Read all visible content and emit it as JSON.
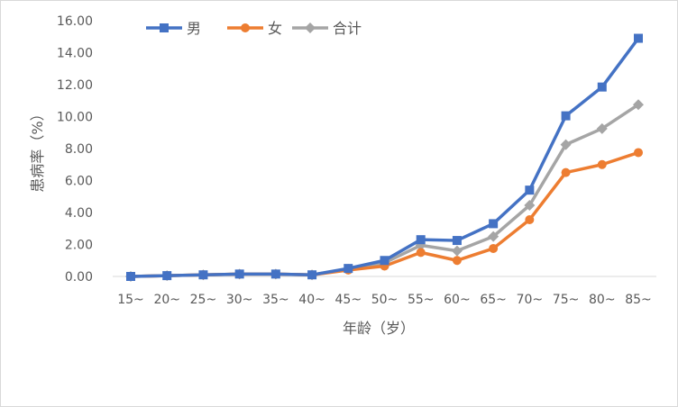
{
  "chart_data": {
    "type": "line",
    "title": "",
    "xlabel": "年龄（岁）",
    "ylabel": "患病率（%）",
    "categories": [
      "15~",
      "20~",
      "25~",
      "30~",
      "35~",
      "40~",
      "45~",
      "50~",
      "55~",
      "60~",
      "65~",
      "70~",
      "75~",
      "80~",
      "85~"
    ],
    "ylim": [
      0,
      16
    ],
    "yticks": [
      "0.00",
      "2.00",
      "4.00",
      "6.00",
      "8.00",
      "10.00",
      "12.00",
      "14.00",
      "16.00"
    ],
    "grid": false,
    "legend": "top-left",
    "series": [
      {
        "name": "男",
        "color": "#4472c4",
        "marker": "square",
        "values": [
          0.0,
          0.05,
          0.1,
          0.15,
          0.15,
          0.1,
          0.5,
          1.0,
          2.3,
          2.25,
          3.3,
          5.4,
          10.05,
          11.85,
          14.9
        ]
      },
      {
        "name": "女",
        "color": "#ed7d31",
        "marker": "circle",
        "values": [
          0.0,
          0.05,
          0.1,
          0.15,
          0.15,
          0.1,
          0.4,
          0.65,
          1.5,
          1.0,
          1.75,
          3.55,
          6.5,
          7.0,
          7.75
        ]
      },
      {
        "name": "合计",
        "color": "#a5a5a5",
        "marker": "diamond",
        "values": [
          0.0,
          0.05,
          0.1,
          0.15,
          0.15,
          0.1,
          0.45,
          0.85,
          1.95,
          1.6,
          2.5,
          4.45,
          8.25,
          9.25,
          10.75
        ]
      }
    ]
  }
}
